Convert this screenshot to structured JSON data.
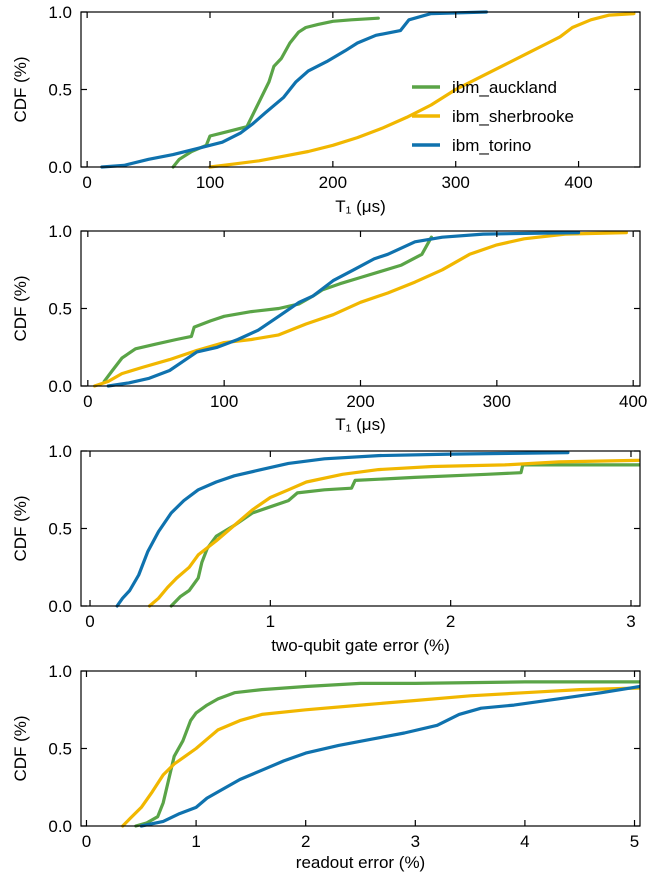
{
  "legend": {
    "entries": [
      {
        "name": "ibm_auckland",
        "color": "#5aa447"
      },
      {
        "name": "ibm_sherbrooke",
        "color": "#f1b700"
      },
      {
        "name": "ibm_torino",
        "color": "#0f72ae"
      }
    ],
    "placement": "right, inside top panel"
  },
  "chart_data": [
    {
      "type": "line",
      "xlabel": "T₁ (μs)",
      "ylabel": "CDF (%)",
      "xlim": [
        -5,
        450
      ],
      "ylim": [
        0,
        1
      ],
      "xticks": [
        0,
        100,
        200,
        300,
        400
      ],
      "yticks": [
        0.0,
        0.5,
        1.0
      ],
      "series": [
        {
          "name": "ibm_auckland",
          "color": "#5aa447",
          "points": [
            [
              70,
              0
            ],
            [
              75,
              0.05
            ],
            [
              85,
              0.1
            ],
            [
              97,
              0.14
            ],
            [
              100,
              0.2
            ],
            [
              110,
              0.22
            ],
            [
              130,
              0.26
            ],
            [
              140,
              0.42
            ],
            [
              148,
              0.55
            ],
            [
              152,
              0.65
            ],
            [
              158,
              0.7
            ],
            [
              165,
              0.8
            ],
            [
              172,
              0.87
            ],
            [
              178,
              0.9
            ],
            [
              188,
              0.92
            ],
            [
              200,
              0.94
            ],
            [
              215,
              0.95
            ],
            [
              237,
              0.96
            ]
          ]
        },
        {
          "name": "ibm_sherbrooke",
          "color": "#f1b700",
          "points": [
            [
              100,
              0
            ],
            [
              120,
              0.02
            ],
            [
              140,
              0.04
            ],
            [
              160,
              0.07
            ],
            [
              180,
              0.1
            ],
            [
              200,
              0.14
            ],
            [
              220,
              0.19
            ],
            [
              240,
              0.25
            ],
            [
              260,
              0.32
            ],
            [
              280,
              0.4
            ],
            [
              300,
              0.5
            ],
            [
              320,
              0.58
            ],
            [
              340,
              0.66
            ],
            [
              360,
              0.74
            ],
            [
              375,
              0.8
            ],
            [
              385,
              0.84
            ],
            [
              395,
              0.9
            ],
            [
              410,
              0.95
            ],
            [
              425,
              0.98
            ],
            [
              445,
              0.99
            ]
          ]
        },
        {
          "name": "ibm_torino",
          "color": "#0f72ae",
          "points": [
            [
              12,
              0
            ],
            [
              30,
              0.01
            ],
            [
              50,
              0.05
            ],
            [
              70,
              0.08
            ],
            [
              90,
              0.12
            ],
            [
              110,
              0.16
            ],
            [
              125,
              0.22
            ],
            [
              135,
              0.28
            ],
            [
              145,
              0.35
            ],
            [
              160,
              0.45
            ],
            [
              170,
              0.55
            ],
            [
              180,
              0.62
            ],
            [
              195,
              0.68
            ],
            [
              210,
              0.75
            ],
            [
              220,
              0.8
            ],
            [
              235,
              0.85
            ],
            [
              255,
              0.88
            ],
            [
              262,
              0.95
            ],
            [
              280,
              0.99
            ],
            [
              325,
              1.0
            ]
          ]
        }
      ]
    },
    {
      "type": "line",
      "xlabel": "T₁ (μs)",
      "ylabel": "CDF (%)",
      "xlim": [
        -5,
        405
      ],
      "ylim": [
        0,
        1
      ],
      "xticks": [
        0,
        100,
        200,
        300,
        400
      ],
      "yticks": [
        0.0,
        0.5,
        1.0
      ],
      "series": [
        {
          "name": "ibm_auckland",
          "color": "#5aa447",
          "points": [
            [
              12,
              0.03
            ],
            [
              18,
              0.1
            ],
            [
              25,
              0.18
            ],
            [
              35,
              0.24
            ],
            [
              50,
              0.27
            ],
            [
              65,
              0.3
            ],
            [
              76,
              0.32
            ],
            [
              78,
              0.38
            ],
            [
              90,
              0.42
            ],
            [
              100,
              0.45
            ],
            [
              120,
              0.48
            ],
            [
              140,
              0.5
            ],
            [
              155,
              0.53
            ],
            [
              165,
              0.58
            ],
            [
              172,
              0.62
            ],
            [
              185,
              0.66
            ],
            [
              200,
              0.7
            ],
            [
              215,
              0.74
            ],
            [
              230,
              0.78
            ],
            [
              245,
              0.85
            ],
            [
              252,
              0.96
            ]
          ]
        },
        {
          "name": "ibm_sherbrooke",
          "color": "#f1b700",
          "points": [
            [
              5,
              0
            ],
            [
              15,
              0.03
            ],
            [
              25,
              0.08
            ],
            [
              40,
              0.12
            ],
            [
              60,
              0.17
            ],
            [
              80,
              0.23
            ],
            [
              100,
              0.28
            ],
            [
              120,
              0.3
            ],
            [
              140,
              0.33
            ],
            [
              160,
              0.4
            ],
            [
              180,
              0.46
            ],
            [
              200,
              0.54
            ],
            [
              220,
              0.6
            ],
            [
              240,
              0.67
            ],
            [
              260,
              0.75
            ],
            [
              280,
              0.85
            ],
            [
              300,
              0.91
            ],
            [
              320,
              0.95
            ],
            [
              350,
              0.98
            ],
            [
              395,
              0.99
            ]
          ]
        },
        {
          "name": "ibm_torino",
          "color": "#0f72ae",
          "points": [
            [
              15,
              0
            ],
            [
              30,
              0.02
            ],
            [
              45,
              0.05
            ],
            [
              60,
              0.1
            ],
            [
              70,
              0.16
            ],
            [
              80,
              0.22
            ],
            [
              95,
              0.25
            ],
            [
              110,
              0.3
            ],
            [
              125,
              0.36
            ],
            [
              140,
              0.45
            ],
            [
              155,
              0.54
            ],
            [
              165,
              0.58
            ],
            [
              180,
              0.68
            ],
            [
              195,
              0.75
            ],
            [
              210,
              0.82
            ],
            [
              220,
              0.85
            ],
            [
              240,
              0.93
            ],
            [
              260,
              0.96
            ],
            [
              290,
              0.98
            ],
            [
              360,
              0.99
            ]
          ]
        }
      ]
    },
    {
      "type": "line",
      "xlabel": "two-qubit gate error (%)",
      "ylabel": "CDF (%)",
      "xlim": [
        -0.05,
        3.05
      ],
      "ylim": [
        0,
        1
      ],
      "xticks": [
        0,
        1,
        2,
        3
      ],
      "yticks": [
        0.0,
        0.5,
        1.0
      ],
      "series": [
        {
          "name": "ibm_auckland",
          "color": "#5aa447",
          "points": [
            [
              0.45,
              0
            ],
            [
              0.5,
              0.06
            ],
            [
              0.55,
              0.1
            ],
            [
              0.6,
              0.18
            ],
            [
              0.62,
              0.28
            ],
            [
              0.65,
              0.37
            ],
            [
              0.7,
              0.45
            ],
            [
              0.8,
              0.52
            ],
            [
              0.9,
              0.6
            ],
            [
              1.0,
              0.64
            ],
            [
              1.1,
              0.68
            ],
            [
              1.15,
              0.73
            ],
            [
              1.3,
              0.75
            ],
            [
              1.45,
              0.76
            ],
            [
              1.47,
              0.81
            ],
            [
              1.8,
              0.83
            ],
            [
              2.2,
              0.85
            ],
            [
              2.39,
              0.86
            ],
            [
              2.4,
              0.91
            ],
            [
              3.05,
              0.91
            ]
          ]
        },
        {
          "name": "ibm_sherbrooke",
          "color": "#f1b700",
          "points": [
            [
              0.33,
              0
            ],
            [
              0.38,
              0.05
            ],
            [
              0.43,
              0.12
            ],
            [
              0.48,
              0.18
            ],
            [
              0.55,
              0.25
            ],
            [
              0.6,
              0.33
            ],
            [
              0.7,
              0.42
            ],
            [
              0.8,
              0.52
            ],
            [
              0.9,
              0.62
            ],
            [
              1.0,
              0.7
            ],
            [
              1.1,
              0.75
            ],
            [
              1.2,
              0.8
            ],
            [
              1.4,
              0.85
            ],
            [
              1.6,
              0.88
            ],
            [
              1.9,
              0.9
            ],
            [
              2.3,
              0.91
            ],
            [
              2.6,
              0.93
            ],
            [
              3.05,
              0.94
            ]
          ]
        },
        {
          "name": "ibm_torino",
          "color": "#0f72ae",
          "points": [
            [
              0.15,
              0
            ],
            [
              0.18,
              0.05
            ],
            [
              0.22,
              0.1
            ],
            [
              0.27,
              0.2
            ],
            [
              0.32,
              0.35
            ],
            [
              0.38,
              0.48
            ],
            [
              0.45,
              0.6
            ],
            [
              0.52,
              0.68
            ],
            [
              0.6,
              0.75
            ],
            [
              0.7,
              0.8
            ],
            [
              0.8,
              0.84
            ],
            [
              0.95,
              0.88
            ],
            [
              1.1,
              0.92
            ],
            [
              1.3,
              0.95
            ],
            [
              1.6,
              0.97
            ],
            [
              2.0,
              0.98
            ],
            [
              2.65,
              0.99
            ]
          ]
        }
      ]
    },
    {
      "type": "line",
      "xlabel": "readout error (%)",
      "ylabel": "CDF (%)",
      "xlim": [
        -0.05,
        5.05
      ],
      "ylim": [
        0,
        1
      ],
      "xticks": [
        0,
        1,
        2,
        3,
        4,
        5
      ],
      "yticks": [
        0.0,
        0.5,
        1.0
      ],
      "series": [
        {
          "name": "ibm_auckland",
          "color": "#5aa447",
          "points": [
            [
              0.45,
              0
            ],
            [
              0.55,
              0.02
            ],
            [
              0.65,
              0.06
            ],
            [
              0.7,
              0.15
            ],
            [
              0.75,
              0.3
            ],
            [
              0.8,
              0.45
            ],
            [
              0.88,
              0.55
            ],
            [
              0.95,
              0.68
            ],
            [
              1.0,
              0.73
            ],
            [
              1.1,
              0.78
            ],
            [
              1.2,
              0.82
            ],
            [
              1.35,
              0.86
            ],
            [
              1.6,
              0.88
            ],
            [
              2.0,
              0.9
            ],
            [
              2.5,
              0.92
            ],
            [
              3.0,
              0.92
            ],
            [
              4.0,
              0.93
            ],
            [
              5.05,
              0.93
            ]
          ]
        },
        {
          "name": "ibm_sherbrooke",
          "color": "#f1b700",
          "points": [
            [
              0.33,
              0
            ],
            [
              0.4,
              0.05
            ],
            [
              0.5,
              0.12
            ],
            [
              0.6,
              0.22
            ],
            [
              0.7,
              0.33
            ],
            [
              0.8,
              0.4
            ],
            [
              0.9,
              0.45
            ],
            [
              1.0,
              0.5
            ],
            [
              1.1,
              0.56
            ],
            [
              1.2,
              0.62
            ],
            [
              1.4,
              0.68
            ],
            [
              1.6,
              0.72
            ],
            [
              2.0,
              0.75
            ],
            [
              2.5,
              0.78
            ],
            [
              3.0,
              0.81
            ],
            [
              3.5,
              0.84
            ],
            [
              4.0,
              0.86
            ],
            [
              4.5,
              0.88
            ],
            [
              5.05,
              0.89
            ]
          ]
        },
        {
          "name": "ibm_torino",
          "color": "#0f72ae",
          "points": [
            [
              0.5,
              0
            ],
            [
              0.7,
              0.03
            ],
            [
              0.85,
              0.08
            ],
            [
              1.0,
              0.12
            ],
            [
              1.1,
              0.18
            ],
            [
              1.2,
              0.22
            ],
            [
              1.4,
              0.3
            ],
            [
              1.6,
              0.36
            ],
            [
              1.8,
              0.42
            ],
            [
              2.0,
              0.47
            ],
            [
              2.3,
              0.52
            ],
            [
              2.6,
              0.56
            ],
            [
              2.9,
              0.6
            ],
            [
              3.2,
              0.65
            ],
            [
              3.4,
              0.72
            ],
            [
              3.6,
              0.76
            ],
            [
              3.9,
              0.78
            ],
            [
              4.3,
              0.82
            ],
            [
              4.7,
              0.86
            ],
            [
              5.05,
              0.9
            ]
          ]
        }
      ]
    }
  ]
}
